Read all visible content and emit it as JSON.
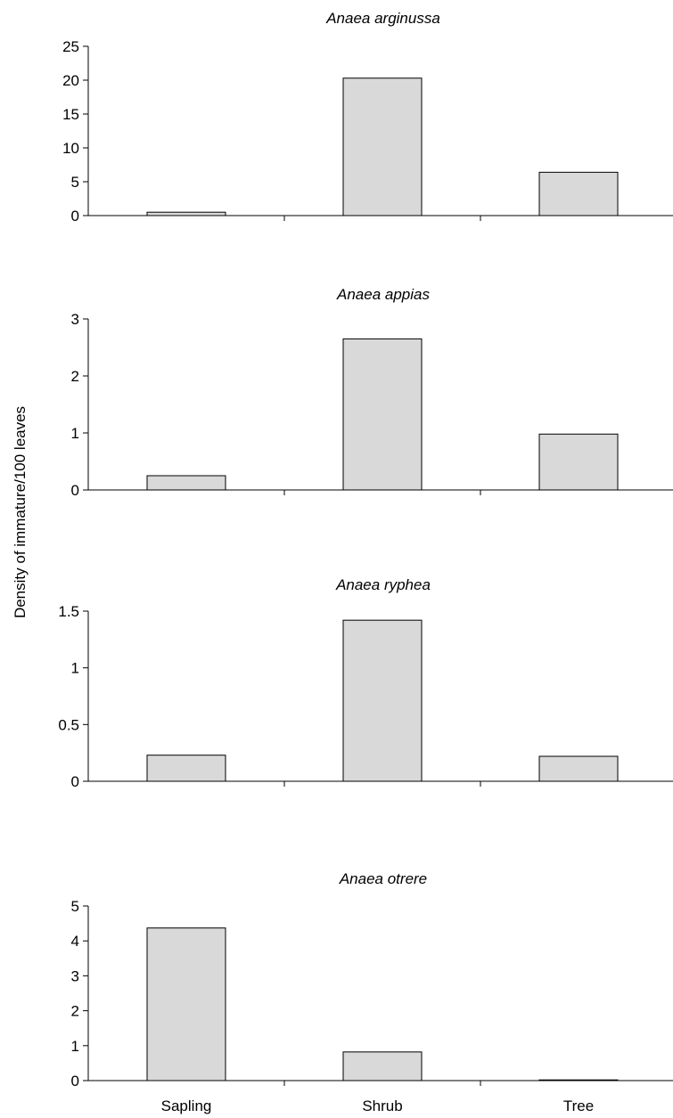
{
  "ylabel": "Density of immature/100 leaves",
  "categories": [
    "Sapling",
    "Shrub",
    "Tree"
  ],
  "style": {
    "bar_fill": "#d9d9d9",
    "bar_stroke": "#000000",
    "axis_color": "#000000"
  },
  "chart_data": [
    {
      "type": "bar",
      "title": "Anaea arginussa",
      "categories": [
        "Sapling",
        "Shrub",
        "Tree"
      ],
      "values": [
        0.5,
        20.3,
        6.4
      ],
      "yticks": [
        "0",
        "5",
        "10",
        "15",
        "20",
        "25"
      ],
      "ylim": [
        0,
        25
      ],
      "xlabel": "",
      "ylabel": "Density of immature/100 leaves",
      "grid": false,
      "category_labels_shown": false
    },
    {
      "type": "bar",
      "title": "Anaea appias",
      "categories": [
        "Sapling",
        "Shrub",
        "Tree"
      ],
      "values": [
        0.25,
        2.65,
        0.98
      ],
      "yticks": [
        "0",
        "1",
        "2",
        "3"
      ],
      "ylim": [
        0,
        3
      ],
      "xlabel": "",
      "ylabel": "Density of immature/100 leaves",
      "grid": false,
      "category_labels_shown": false
    },
    {
      "type": "bar",
      "title": "Anaea ryphea",
      "categories": [
        "Sapling",
        "Shrub",
        "Tree"
      ],
      "values": [
        0.23,
        1.42,
        0.22
      ],
      "yticks": [
        "0",
        "0.5",
        "1",
        "1.5"
      ],
      "ylim": [
        0,
        1.5
      ],
      "xlabel": "",
      "ylabel": "Density of immature/100 leaves",
      "grid": false,
      "category_labels_shown": false
    },
    {
      "type": "bar",
      "title": "Anaea otrere",
      "categories": [
        "Sapling",
        "Shrub",
        "Tree"
      ],
      "values": [
        4.37,
        0.82,
        0.02
      ],
      "yticks": [
        "0",
        "1",
        "2",
        "3",
        "4",
        "5"
      ],
      "ylim": [
        0,
        5
      ],
      "xlabel": "",
      "ylabel": "Density of immature/100 leaves",
      "grid": false,
      "category_labels_shown": true
    }
  ]
}
